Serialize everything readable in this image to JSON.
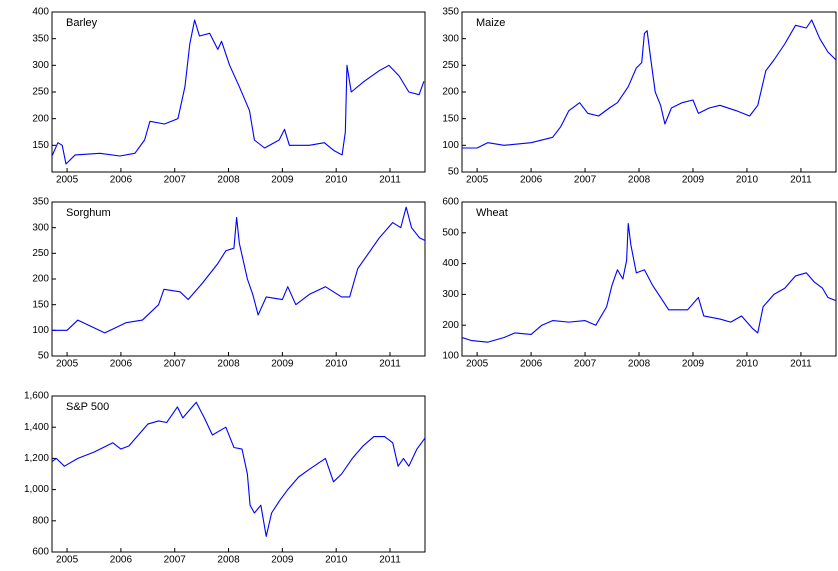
{
  "chart_data": [
    {
      "type": "line",
      "title": "Barley",
      "color": "#0000ff",
      "x": [
        2005.22,
        2005.33,
        2005.41,
        2005.48,
        2005.65,
        2006.11,
        2006.48,
        2006.76,
        2006.94,
        2007.04,
        2007.31,
        2007.56,
        2007.69,
        2007.78,
        2007.87,
        2007.96,
        2008.15,
        2008.3,
        2008.37,
        2008.52,
        2008.7,
        2008.89,
        2008.98,
        2009.17,
        2009.44,
        2009.54,
        2009.63,
        2010.0,
        2010.28,
        2010.46,
        2010.61,
        2010.67,
        2010.7,
        2010.78,
        2011.02,
        2011.3,
        2011.48,
        2011.67,
        2011.85,
        2012.04,
        2012.13
      ],
      "values": [
        130,
        155,
        150,
        115,
        132,
        135,
        130,
        135,
        160,
        195,
        190,
        200,
        260,
        340,
        385,
        355,
        360,
        330,
        345,
        300,
        260,
        215,
        160,
        145,
        160,
        180,
        150,
        150,
        155,
        140,
        132,
        175,
        300,
        250,
        270,
        290,
        300,
        280,
        250,
        245,
        270
      ],
      "xlim": [
        2005.22,
        2012.15
      ],
      "xticks": [
        {
          "value": 2005.5,
          "label": "2005"
        },
        {
          "value": 2006.5,
          "label": "2006"
        },
        {
          "value": 2007.5,
          "label": "2007"
        },
        {
          "value": 2008.5,
          "label": "2008"
        },
        {
          "value": 2009.5,
          "label": "2009"
        },
        {
          "value": 2010.5,
          "label": "2010"
        },
        {
          "value": 2011.5,
          "label": "2011"
        }
      ],
      "ylim": [
        100,
        400
      ],
      "yticks": [
        150,
        200,
        250,
        300,
        350,
        400
      ]
    },
    {
      "type": "line",
      "title": "Maize",
      "color": "#0000ff",
      "x": [
        2005.22,
        2005.5,
        2005.7,
        2006.0,
        2006.5,
        2006.9,
        2007.05,
        2007.2,
        2007.4,
        2007.55,
        2007.75,
        2007.95,
        2008.1,
        2008.3,
        2008.45,
        2008.55,
        2008.6,
        2008.65,
        2008.72,
        2008.8,
        2008.9,
        2008.98,
        2009.1,
        2009.3,
        2009.5,
        2009.6,
        2009.8,
        2010.0,
        2010.3,
        2010.55,
        2010.7,
        2010.85,
        2011.0,
        2011.2,
        2011.4,
        2011.6,
        2011.7,
        2011.85,
        2012.0,
        2012.15
      ],
      "values": [
        95,
        95,
        105,
        100,
        105,
        115,
        135,
        165,
        180,
        160,
        155,
        170,
        180,
        210,
        245,
        255,
        310,
        315,
        260,
        200,
        175,
        140,
        170,
        180,
        185,
        160,
        170,
        175,
        165,
        155,
        175,
        240,
        260,
        290,
        325,
        320,
        335,
        300,
        275,
        260
      ],
      "xlim": [
        2005.22,
        2012.15
      ],
      "xticks": [
        {
          "value": 2005.5,
          "label": "2005"
        },
        {
          "value": 2006.5,
          "label": "2006"
        },
        {
          "value": 2007.5,
          "label": "2007"
        },
        {
          "value": 2008.5,
          "label": "2008"
        },
        {
          "value": 2009.5,
          "label": "2009"
        },
        {
          "value": 2010.5,
          "label": "2010"
        },
        {
          "value": 2011.5,
          "label": "2011"
        }
      ],
      "ylim": [
        50,
        350
      ],
      "yticks": [
        50,
        100,
        150,
        200,
        250,
        300,
        350
      ]
    },
    {
      "type": "line",
      "title": "Sorghum",
      "color": "#0000ff",
      "x": [
        2005.22,
        2005.5,
        2005.7,
        2006.2,
        2006.6,
        2006.9,
        2007.2,
        2007.3,
        2007.6,
        2007.75,
        2008.0,
        2008.3,
        2008.45,
        2008.6,
        2008.65,
        2008.7,
        2008.85,
        2008.95,
        2009.05,
        2009.2,
        2009.5,
        2009.6,
        2009.75,
        2010.0,
        2010.3,
        2010.6,
        2010.75,
        2010.9,
        2011.1,
        2011.3,
        2011.55,
        2011.7,
        2011.8,
        2011.9,
        2012.05,
        2012.15
      ],
      "values": [
        100,
        100,
        120,
        95,
        115,
        120,
        150,
        180,
        175,
        160,
        190,
        230,
        255,
        260,
        320,
        270,
        200,
        170,
        130,
        165,
        160,
        185,
        150,
        170,
        185,
        165,
        165,
        220,
        250,
        280,
        310,
        300,
        340,
        300,
        280,
        275
      ],
      "xlim": [
        2005.22,
        2012.15
      ],
      "xticks": [
        {
          "value": 2005.5,
          "label": "2005"
        },
        {
          "value": 2006.5,
          "label": "2006"
        },
        {
          "value": 2007.5,
          "label": "2007"
        },
        {
          "value": 2008.5,
          "label": "2008"
        },
        {
          "value": 2009.5,
          "label": "2009"
        },
        {
          "value": 2010.5,
          "label": "2010"
        },
        {
          "value": 2011.5,
          "label": "2011"
        }
      ],
      "ylim": [
        50,
        350
      ],
      "yticks": [
        50,
        100,
        150,
        200,
        250,
        300,
        350
      ]
    },
    {
      "type": "line",
      "title": "Wheat",
      "color": "#0000ff",
      "x": [
        2005.22,
        2005.4,
        2005.7,
        2006.0,
        2006.2,
        2006.5,
        2006.7,
        2006.9,
        2007.2,
        2007.5,
        2007.7,
        2007.9,
        2008.0,
        2008.1,
        2008.2,
        2008.27,
        2008.3,
        2008.35,
        2008.45,
        2008.6,
        2008.75,
        2008.9,
        2009.05,
        2009.2,
        2009.4,
        2009.6,
        2009.7,
        2010.0,
        2010.2,
        2010.4,
        2010.6,
        2010.7,
        2010.8,
        2011.0,
        2011.2,
        2011.4,
        2011.6,
        2011.75,
        2011.9,
        2012.0,
        2012.15
      ],
      "values": [
        160,
        150,
        145,
        160,
        175,
        170,
        200,
        215,
        210,
        215,
        200,
        260,
        330,
        380,
        350,
        410,
        530,
        460,
        370,
        380,
        330,
        290,
        250,
        250,
        250,
        290,
        230,
        220,
        210,
        230,
        190,
        175,
        260,
        300,
        320,
        360,
        370,
        340,
        320,
        290,
        280
      ],
      "xlim": [
        2005.22,
        2012.15
      ],
      "xticks": [
        {
          "value": 2005.5,
          "label": "2005"
        },
        {
          "value": 2006.5,
          "label": "2006"
        },
        {
          "value": 2007.5,
          "label": "2007"
        },
        {
          "value": 2008.5,
          "label": "2008"
        },
        {
          "value": 2009.5,
          "label": "2009"
        },
        {
          "value": 2010.5,
          "label": "2010"
        },
        {
          "value": 2011.5,
          "label": "2011"
        }
      ],
      "ylim": [
        100,
        600
      ],
      "yticks": [
        100,
        200,
        300,
        400,
        500,
        600
      ]
    },
    {
      "type": "line",
      "title": "S&P 500",
      "color": "#0000ff",
      "x": [
        2005.22,
        2005.3,
        2005.45,
        2005.7,
        2006.0,
        2006.35,
        2006.5,
        2006.65,
        2007.0,
        2007.2,
        2007.35,
        2007.55,
        2007.65,
        2007.8,
        2007.9,
        2008.05,
        2008.2,
        2008.35,
        2008.45,
        2008.6,
        2008.75,
        2008.85,
        2008.9,
        2008.98,
        2009.1,
        2009.2,
        2009.3,
        2009.45,
        2009.6,
        2009.8,
        2010.0,
        2010.3,
        2010.45,
        2010.6,
        2010.8,
        2011.0,
        2011.2,
        2011.4,
        2011.55,
        2011.65,
        2011.75,
        2011.85,
        2012.0,
        2012.15
      ],
      "values": [
        1180,
        1200,
        1150,
        1200,
        1240,
        1300,
        1260,
        1280,
        1420,
        1440,
        1430,
        1530,
        1460,
        1520,
        1560,
        1460,
        1350,
        1380,
        1400,
        1270,
        1260,
        1100,
        900,
        850,
        900,
        700,
        850,
        930,
        1000,
        1080,
        1130,
        1200,
        1050,
        1100,
        1200,
        1280,
        1340,
        1340,
        1300,
        1150,
        1200,
        1150,
        1260,
        1330
      ],
      "xlim": [
        2005.22,
        2012.15
      ],
      "xticks": [
        {
          "value": 2005.5,
          "label": "2005"
        },
        {
          "value": 2006.5,
          "label": "2006"
        },
        {
          "value": 2007.5,
          "label": "2007"
        },
        {
          "value": 2008.5,
          "label": "2008"
        },
        {
          "value": 2009.5,
          "label": "2009"
        },
        {
          "value": 2010.5,
          "label": "2010"
        },
        {
          "value": 2011.5,
          "label": "2011"
        }
      ],
      "ylim": [
        600,
        1600
      ],
      "yticks": [
        600,
        800,
        {
          "value": 1000,
          "label": "1,000"
        },
        {
          "value": 1200,
          "label": "1,200"
        },
        {
          "value": 1400,
          "label": "1,400"
        },
        {
          "value": 1600,
          "label": "1,600"
        }
      ]
    }
  ]
}
